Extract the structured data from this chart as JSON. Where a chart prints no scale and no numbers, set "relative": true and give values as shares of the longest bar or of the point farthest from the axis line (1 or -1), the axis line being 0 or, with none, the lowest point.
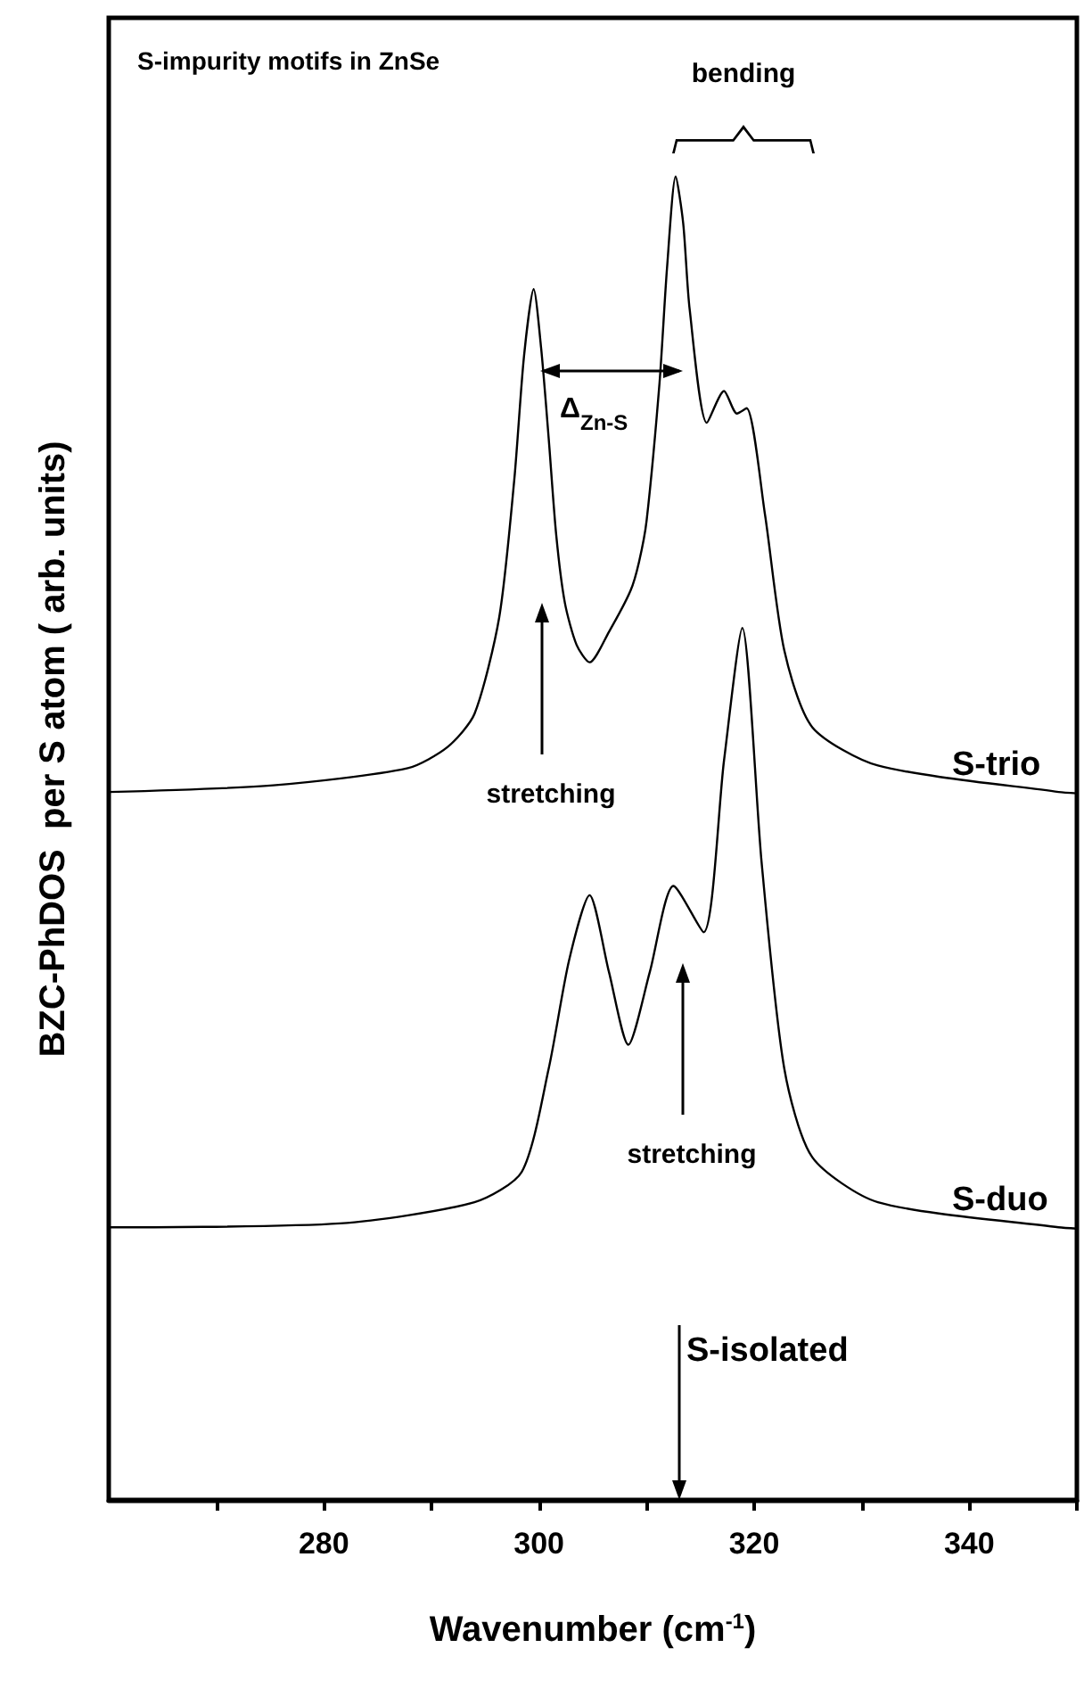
{
  "chart_data": {
    "type": "line",
    "relative": true,
    "title": "S-impurity motifs in ZnSe",
    "xlabel": "Wavenumber (cm$^{-1}$)",
    "ylabel": "BZC-PhDOS  per S atom ( arb. units)",
    "xlim": [
      260,
      350
    ],
    "xticks": [
      {
        "value": 270,
        "label": null
      },
      280,
      {
        "value": 290,
        "label": null
      },
      300,
      {
        "value": 310,
        "label": null
      },
      320,
      {
        "value": 330,
        "label": null
      },
      340,
      {
        "value": 350,
        "label": null
      }
    ],
    "marker": "none",
    "line_style": "solid",
    "series": [
      {
        "name": "S-trio",
        "color": "#000000",
        "x": [
          260,
          275.3,
          287.8,
          291.5,
          294,
          296.3,
          297.7,
          298.6,
          299.5,
          300.2,
          300.9,
          301.6,
          302.4,
          303.5,
          304.7,
          306.5,
          308.5,
          309.3,
          310,
          311.2,
          311.9,
          312.7,
          313.4,
          314,
          315.6,
          317.2,
          318.4,
          319.3,
          321,
          322.8,
          325.4,
          331.5,
          348.3,
          350
        ],
        "values": [
          0.535,
          0.54,
          0.553,
          0.569,
          0.594,
          0.667,
          0.771,
          0.864,
          0.915,
          0.87,
          0.802,
          0.729,
          0.678,
          0.646,
          0.633,
          0.656,
          0.687,
          0.709,
          0.74,
          0.844,
          0.931,
          1.0,
          0.965,
          0.9,
          0.814,
          0.838,
          0.821,
          0.825,
          0.745,
          0.642,
          0.584,
          0.555,
          0.535,
          0.534
        ]
      },
      {
        "name": "S-duo",
        "color": "#000000",
        "x": [
          260,
          281.5,
          294,
          298.4,
          300.9,
          302.8,
          304.7,
          306.5,
          308.3,
          310.3,
          312.5,
          315.3,
          317.2,
          318.9,
          320.7,
          322.8,
          325.4,
          331.5,
          348.3,
          350
        ],
        "values": [
          0.206,
          0.209,
          0.225,
          0.248,
          0.326,
          0.408,
          0.457,
          0.399,
          0.344,
          0.399,
          0.464,
          0.429,
          0.559,
          0.659,
          0.481,
          0.326,
          0.259,
          0.225,
          0.206,
          0.205
        ]
      }
    ],
    "annotations": [
      "bending",
      "Δ$_{Zn-S}$",
      "stretching",
      "stretching",
      "S-isolated"
    ]
  }
}
